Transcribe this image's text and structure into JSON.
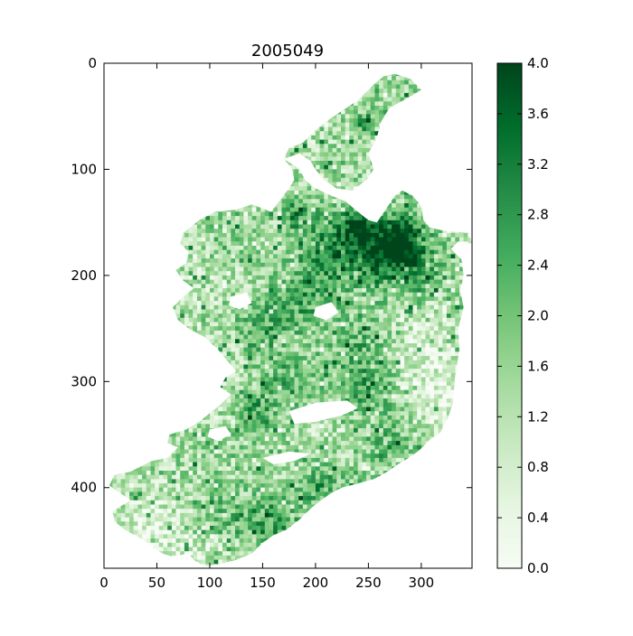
{
  "chart_data": {
    "type": "heatmap",
    "title": "2005049",
    "xlabel": "",
    "ylabel": "",
    "colormap": "Greens",
    "x_ticks": [
      0,
      50,
      100,
      150,
      200,
      250,
      300
    ],
    "y_ticks": [
      0,
      100,
      200,
      300,
      400
    ],
    "xlim": [
      0,
      348
    ],
    "ylim": [
      476,
      0
    ],
    "clim": [
      0.0,
      4.0
    ],
    "colorbar_ticks": [
      "0.0",
      "0.4",
      "0.8",
      "1.2",
      "1.6",
      "2.0",
      "2.4",
      "2.8",
      "3.2",
      "3.6",
      "4.0"
    ],
    "colors": {
      "low": "#f7fcf5",
      "high": "#00441b",
      "axes": "#000000"
    },
    "region_outline": [
      [
        275,
        10
      ],
      [
        290,
        15
      ],
      [
        300,
        25
      ],
      [
        292,
        30
      ],
      [
        283,
        35
      ],
      [
        270,
        42
      ],
      [
        262,
        55
      ],
      [
        258,
        70
      ],
      [
        250,
        85
      ],
      [
        255,
        100
      ],
      [
        248,
        110
      ],
      [
        235,
        120
      ],
      [
        220,
        118
      ],
      [
        208,
        110
      ],
      [
        200,
        100
      ],
      [
        195,
        92
      ],
      [
        185,
        85
      ],
      [
        170,
        90
      ],
      [
        185,
        100
      ],
      [
        190,
        110
      ],
      [
        200,
        118
      ],
      [
        215,
        125
      ],
      [
        228,
        130
      ],
      [
        240,
        140
      ],
      [
        250,
        148
      ],
      [
        258,
        150
      ],
      [
        265,
        140
      ],
      [
        275,
        125
      ],
      [
        282,
        120
      ],
      [
        292,
        125
      ],
      [
        300,
        135
      ],
      [
        302,
        148
      ],
      [
        308,
        155
      ],
      [
        322,
        158
      ],
      [
        345,
        160
      ],
      [
        348,
        170
      ],
      [
        335,
        168
      ],
      [
        328,
        175
      ],
      [
        338,
        185
      ],
      [
        340,
        200
      ],
      [
        337,
        215
      ],
      [
        340,
        230
      ],
      [
        335,
        250
      ],
      [
        336,
        270
      ],
      [
        332,
        295
      ],
      [
        330,
        320
      ],
      [
        325,
        335
      ],
      [
        318,
        348
      ],
      [
        308,
        355
      ],
      [
        298,
        365
      ],
      [
        288,
        372
      ],
      [
        278,
        378
      ],
      [
        268,
        385
      ],
      [
        255,
        392
      ],
      [
        240,
        396
      ],
      [
        225,
        400
      ],
      [
        215,
        405
      ],
      [
        205,
        412
      ],
      [
        195,
        420
      ],
      [
        185,
        430
      ],
      [
        172,
        440
      ],
      [
        160,
        445
      ],
      [
        150,
        452
      ],
      [
        140,
        462
      ],
      [
        125,
        468
      ],
      [
        110,
        472
      ],
      [
        95,
        474
      ],
      [
        85,
        468
      ],
      [
        80,
        462
      ],
      [
        65,
        465
      ],
      [
        55,
        462
      ],
      [
        45,
        455
      ],
      [
        35,
        448
      ],
      [
        20,
        440
      ],
      [
        10,
        432
      ],
      [
        8,
        422
      ],
      [
        15,
        418
      ],
      [
        25,
        412
      ],
      [
        15,
        405
      ],
      [
        5,
        398
      ],
      [
        10,
        388
      ],
      [
        25,
        385
      ],
      [
        35,
        380
      ],
      [
        45,
        375
      ],
      [
        60,
        372
      ],
      [
        70,
        362
      ],
      [
        60,
        358
      ],
      [
        62,
        350
      ],
      [
        78,
        345
      ],
      [
        90,
        338
      ],
      [
        100,
        330
      ],
      [
        110,
        322
      ],
      [
        120,
        312
      ],
      [
        110,
        305
      ],
      [
        115,
        296
      ],
      [
        125,
        290
      ],
      [
        118,
        282
      ],
      [
        108,
        270
      ],
      [
        95,
        258
      ],
      [
        80,
        250
      ],
      [
        70,
        242
      ],
      [
        65,
        230
      ],
      [
        75,
        220
      ],
      [
        85,
        212
      ],
      [
        75,
        205
      ],
      [
        68,
        195
      ],
      [
        78,
        188
      ],
      [
        80,
        178
      ],
      [
        72,
        170
      ],
      [
        75,
        160
      ],
      [
        90,
        148
      ],
      [
        105,
        140
      ],
      [
        125,
        138
      ],
      [
        140,
        133
      ],
      [
        158,
        140
      ],
      [
        170,
        125
      ],
      [
        180,
        110
      ],
      [
        178,
        100
      ],
      [
        170,
        90
      ],
      [
        175,
        80
      ],
      [
        188,
        75
      ],
      [
        198,
        65
      ],
      [
        210,
        55
      ],
      [
        225,
        45
      ],
      [
        240,
        35
      ],
      [
        255,
        20
      ],
      [
        265,
        12
      ]
    ],
    "gaps": [
      [
        [
          175,
          328
        ],
        [
          200,
          320
        ],
        [
          230,
          318
        ],
        [
          240,
          325
        ],
        [
          225,
          332
        ],
        [
          200,
          338
        ],
        [
          180,
          340
        ]
      ],
      [
        [
          150,
          372
        ],
        [
          175,
          366
        ],
        [
          195,
          368
        ],
        [
          180,
          375
        ],
        [
          160,
          378
        ]
      ],
      [
        [
          100,
          345
        ],
        [
          115,
          342
        ],
        [
          120,
          350
        ],
        [
          108,
          356
        ],
        [
          98,
          352
        ]
      ],
      [
        [
          200,
          230
        ],
        [
          215,
          225
        ],
        [
          222,
          235
        ],
        [
          210,
          242
        ],
        [
          198,
          238
        ]
      ],
      [
        [
          120,
          220
        ],
        [
          135,
          216
        ],
        [
          140,
          226
        ],
        [
          128,
          232
        ],
        [
          118,
          228
        ]
      ]
    ],
    "hotspots": [
      {
        "x": 280,
        "y": 165,
        "r": 25,
        "v": 3.6
      },
      {
        "x": 260,
        "y": 180,
        "r": 30,
        "v": 3.2
      },
      {
        "x": 215,
        "y": 170,
        "r": 28,
        "v": 3.0
      },
      {
        "x": 240,
        "y": 150,
        "r": 15,
        "v": 3.4
      },
      {
        "x": 245,
        "y": 55,
        "r": 10,
        "v": 3.2
      },
      {
        "x": 180,
        "y": 140,
        "r": 15,
        "v": 2.8
      },
      {
        "x": 190,
        "y": 215,
        "r": 30,
        "v": 2.6
      },
      {
        "x": 150,
        "y": 250,
        "r": 25,
        "v": 2.4
      },
      {
        "x": 245,
        "y": 300,
        "r": 30,
        "v": 2.6
      },
      {
        "x": 170,
        "y": 300,
        "r": 25,
        "v": 2.2
      },
      {
        "x": 140,
        "y": 330,
        "r": 20,
        "v": 2.6
      },
      {
        "x": 160,
        "y": 430,
        "r": 25,
        "v": 2.6
      },
      {
        "x": 205,
        "y": 400,
        "r": 20,
        "v": 2.6
      },
      {
        "x": 115,
        "y": 420,
        "r": 25,
        "v": 2.0
      },
      {
        "x": 110,
        "y": 170,
        "r": 25,
        "v": 1.6
      },
      {
        "x": 300,
        "y": 200,
        "r": 25,
        "v": 2.2
      },
      {
        "x": 240,
        "y": 260,
        "r": 25,
        "v": 2.0
      },
      {
        "x": 90,
        "y": 300,
        "r": 25,
        "v": 1.6
      },
      {
        "x": 230,
        "y": 90,
        "r": 18,
        "v": 1.6
      },
      {
        "x": 270,
        "y": 360,
        "r": 20,
        "v": 2.2
      }
    ],
    "coldspots": [
      {
        "x": 290,
        "y": 280,
        "r": 35,
        "v": 0.7
      },
      {
        "x": 315,
        "y": 320,
        "r": 25,
        "v": 0.6
      },
      {
        "x": 40,
        "y": 430,
        "r": 30,
        "v": 0.6
      },
      {
        "x": 85,
        "y": 460,
        "r": 25,
        "v": 0.8
      },
      {
        "x": 100,
        "y": 290,
        "r": 30,
        "v": 0.9
      },
      {
        "x": 90,
        "y": 200,
        "r": 25,
        "v": 1.0
      },
      {
        "x": 265,
        "y": 80,
        "r": 20,
        "v": 0.9
      },
      {
        "x": 310,
        "y": 240,
        "r": 25,
        "v": 0.9
      }
    ]
  }
}
